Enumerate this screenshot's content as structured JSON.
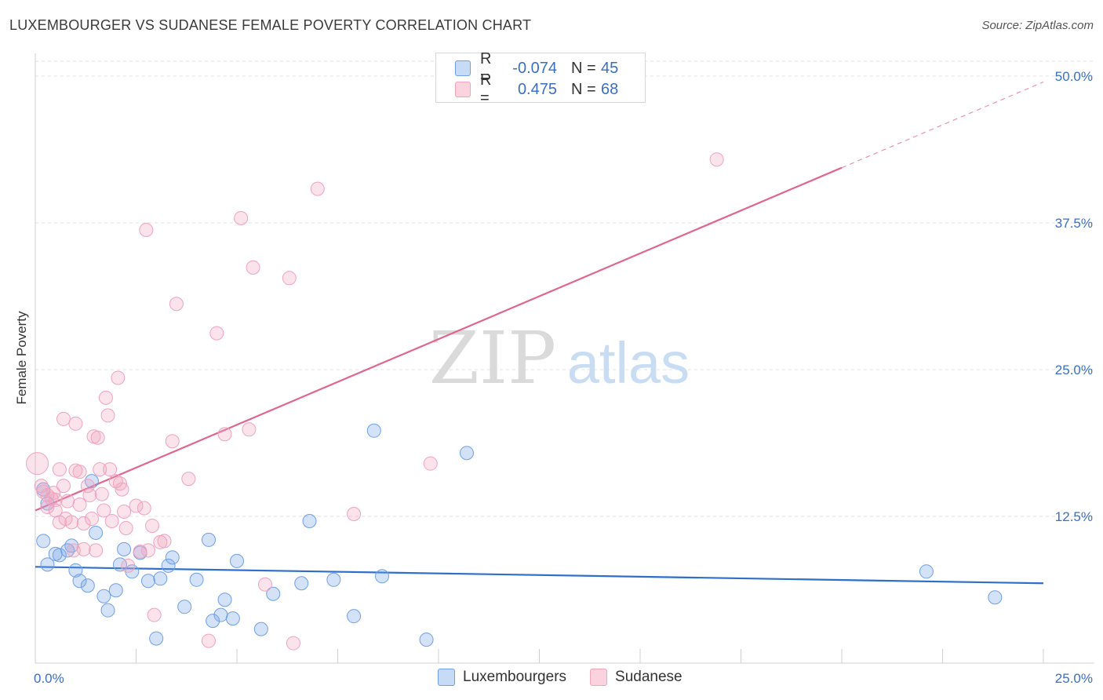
{
  "title": "LUXEMBOURGER VS SUDANESE FEMALE POVERTY CORRELATION CHART",
  "source": "Source: ZipAtlas.com",
  "watermark": {
    "left": "ZIP",
    "right": "atlas"
  },
  "colors": {
    "blue": "#6fa0e6",
    "blue_line": "#2f6fcc",
    "pink": "#f0a3bc",
    "pink_line": "#e0668f",
    "tick_label": "#3a6fc4"
  },
  "legend_stats": [
    {
      "series": "Luxembourgers",
      "r_label": "R =",
      "r_value": "-0.074",
      "n_label": "N =",
      "n_value": "45"
    },
    {
      "series": "Sudanese",
      "r_label": "R =",
      "r_value": "0.475",
      "n_label": "N =",
      "n_value": "68"
    }
  ],
  "chart_data": {
    "type": "scatter",
    "title": "LUXEMBOURGER VS SUDANESE FEMALE POVERTY CORRELATION CHART",
    "xlabel": "",
    "ylabel": "Female Poverty",
    "xlim": [
      0,
      25
    ],
    "ylim": [
      0,
      50
    ],
    "x_tick_labels": [
      {
        "value": 0,
        "label": "0.0%"
      },
      {
        "value": 25,
        "label": "25.0%"
      }
    ],
    "y_tick_labels": [
      {
        "value": 12.5,
        "label": "12.5%"
      },
      {
        "value": 25,
        "label": "25.0%"
      },
      {
        "value": 37.5,
        "label": "37.5%"
      },
      {
        "value": 50,
        "label": "50.0%"
      }
    ],
    "legend": [
      "Luxembourgers",
      "Sudanese"
    ],
    "series": [
      {
        "name": "Luxembourgers",
        "trend": {
          "x0": 0,
          "y0": 8.2,
          "x1": 25,
          "y1": 6.8
        },
        "points": [
          {
            "x": 0.2,
            "y": 14.8
          },
          {
            "x": 0.3,
            "y": 13.6
          },
          {
            "x": 0.2,
            "y": 10.4
          },
          {
            "x": 0.3,
            "y": 8.4
          },
          {
            "x": 0.5,
            "y": 9.3
          },
          {
            "x": 0.6,
            "y": 9.2
          },
          {
            "x": 0.8,
            "y": 9.6
          },
          {
            "x": 0.9,
            "y": 10.0
          },
          {
            "x": 1.0,
            "y": 7.9
          },
          {
            "x": 1.1,
            "y": 7.0
          },
          {
            "x": 1.3,
            "y": 6.6
          },
          {
            "x": 1.4,
            "y": 15.5
          },
          {
            "x": 1.5,
            "y": 11.1
          },
          {
            "x": 1.7,
            "y": 5.7
          },
          {
            "x": 1.8,
            "y": 4.5
          },
          {
            "x": 2.0,
            "y": 6.2
          },
          {
            "x": 2.1,
            "y": 8.4
          },
          {
            "x": 2.2,
            "y": 9.7
          },
          {
            "x": 2.4,
            "y": 7.8
          },
          {
            "x": 2.6,
            "y": 9.4
          },
          {
            "x": 2.8,
            "y": 7.0
          },
          {
            "x": 3.0,
            "y": 2.1
          },
          {
            "x": 3.1,
            "y": 7.2
          },
          {
            "x": 3.3,
            "y": 8.3
          },
          {
            "x": 3.4,
            "y": 9.0
          },
          {
            "x": 3.7,
            "y": 4.8
          },
          {
            "x": 4.0,
            "y": 7.1
          },
          {
            "x": 4.3,
            "y": 10.5
          },
          {
            "x": 4.4,
            "y": 3.6
          },
          {
            "x": 4.6,
            "y": 4.1
          },
          {
            "x": 4.7,
            "y": 5.4
          },
          {
            "x": 4.9,
            "y": 3.8
          },
          {
            "x": 5.0,
            "y": 8.7
          },
          {
            "x": 5.6,
            "y": 2.9
          },
          {
            "x": 5.9,
            "y": 5.9
          },
          {
            "x": 6.6,
            "y": 6.8
          },
          {
            "x": 6.8,
            "y": 12.1
          },
          {
            "x": 7.4,
            "y": 7.1
          },
          {
            "x": 7.9,
            "y": 4.0
          },
          {
            "x": 8.4,
            "y": 19.8
          },
          {
            "x": 8.6,
            "y": 7.4
          },
          {
            "x": 9.7,
            "y": 2.0
          },
          {
            "x": 10.7,
            "y": 17.9
          },
          {
            "x": 22.1,
            "y": 7.8
          },
          {
            "x": 23.8,
            "y": 5.6
          }
        ]
      },
      {
        "name": "Sudanese",
        "trend": {
          "x0": 0,
          "y0": 13.0,
          "x1": 20,
          "y1": 42.2,
          "dash_x1": 25,
          "dash_y1": 49.5
        },
        "points": [
          {
            "x": 0.05,
            "y": 17.0
          },
          {
            "x": 0.15,
            "y": 15.1
          },
          {
            "x": 0.2,
            "y": 14.6
          },
          {
            "x": 0.3,
            "y": 14.3
          },
          {
            "x": 0.3,
            "y": 13.3
          },
          {
            "x": 0.4,
            "y": 14.0
          },
          {
            "x": 0.45,
            "y": 14.5
          },
          {
            "x": 0.5,
            "y": 13.0
          },
          {
            "x": 0.6,
            "y": 12.0
          },
          {
            "x": 0.6,
            "y": 16.5
          },
          {
            "x": 0.7,
            "y": 15.1
          },
          {
            "x": 0.7,
            "y": 20.8
          },
          {
            "x": 0.75,
            "y": 12.3
          },
          {
            "x": 0.8,
            "y": 13.8
          },
          {
            "x": 0.9,
            "y": 12.0
          },
          {
            "x": 0.95,
            "y": 9.6
          },
          {
            "x": 1.0,
            "y": 20.4
          },
          {
            "x": 1.0,
            "y": 16.4
          },
          {
            "x": 1.1,
            "y": 13.5
          },
          {
            "x": 1.1,
            "y": 16.3
          },
          {
            "x": 1.2,
            "y": 11.9
          },
          {
            "x": 1.2,
            "y": 9.7
          },
          {
            "x": 1.3,
            "y": 15.1
          },
          {
            "x": 1.35,
            "y": 14.3
          },
          {
            "x": 1.4,
            "y": 12.3
          },
          {
            "x": 1.45,
            "y": 19.3
          },
          {
            "x": 1.5,
            "y": 9.6
          },
          {
            "x": 1.55,
            "y": 19.2
          },
          {
            "x": 1.6,
            "y": 16.5
          },
          {
            "x": 1.65,
            "y": 14.4
          },
          {
            "x": 1.7,
            "y": 13.0
          },
          {
            "x": 1.75,
            "y": 22.6
          },
          {
            "x": 1.8,
            "y": 21.1
          },
          {
            "x": 1.85,
            "y": 16.5
          },
          {
            "x": 1.9,
            "y": 12.1
          },
          {
            "x": 2.0,
            "y": 15.5
          },
          {
            "x": 2.05,
            "y": 24.3
          },
          {
            "x": 2.1,
            "y": 15.3
          },
          {
            "x": 2.15,
            "y": 14.8
          },
          {
            "x": 2.2,
            "y": 12.9
          },
          {
            "x": 2.25,
            "y": 11.5
          },
          {
            "x": 2.3,
            "y": 8.3
          },
          {
            "x": 2.5,
            "y": 13.4
          },
          {
            "x": 2.6,
            "y": 9.5
          },
          {
            "x": 2.7,
            "y": 13.2
          },
          {
            "x": 2.75,
            "y": 36.9
          },
          {
            "x": 2.8,
            "y": 9.6
          },
          {
            "x": 2.9,
            "y": 11.7
          },
          {
            "x": 2.95,
            "y": 4.1
          },
          {
            "x": 3.1,
            "y": 10.3
          },
          {
            "x": 3.2,
            "y": 10.4
          },
          {
            "x": 3.4,
            "y": 18.9
          },
          {
            "x": 3.5,
            "y": 30.6
          },
          {
            "x": 3.8,
            "y": 15.7
          },
          {
            "x": 4.3,
            "y": 1.9
          },
          {
            "x": 4.5,
            "y": 28.1
          },
          {
            "x": 4.7,
            "y": 19.5
          },
          {
            "x": 5.1,
            "y": 37.9
          },
          {
            "x": 5.3,
            "y": 19.9
          },
          {
            "x": 5.4,
            "y": 33.7
          },
          {
            "x": 5.7,
            "y": 6.7
          },
          {
            "x": 6.3,
            "y": 32.8
          },
          {
            "x": 6.4,
            "y": 1.7
          },
          {
            "x": 7.0,
            "y": 40.4
          },
          {
            "x": 7.9,
            "y": 12.7
          },
          {
            "x": 9.8,
            "y": 17.0
          },
          {
            "x": 16.9,
            "y": 42.9
          },
          {
            "x": 0.5,
            "y": 13.9
          }
        ]
      }
    ]
  }
}
